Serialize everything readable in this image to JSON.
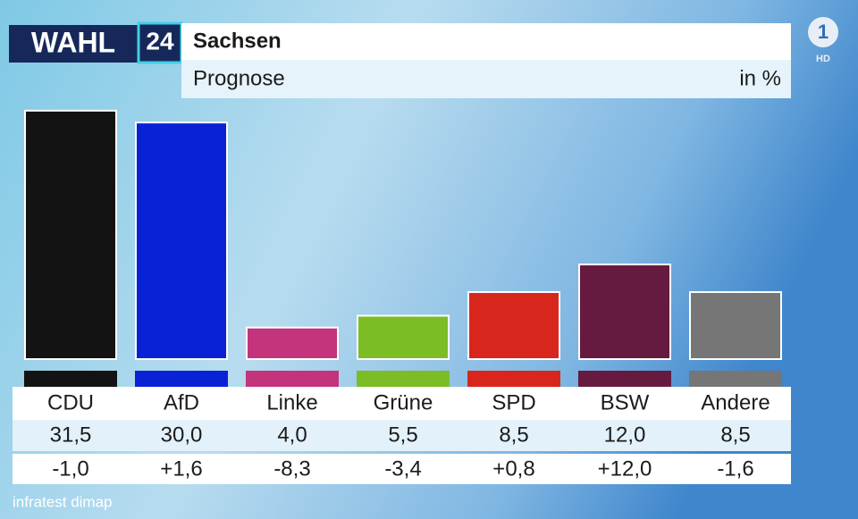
{
  "logo": {
    "word": "WAHL",
    "number": "24"
  },
  "channel": {
    "logo": "1",
    "label": "HD"
  },
  "source": "infratest dimap",
  "chart_data": {
    "type": "bar",
    "title": "Sachsen",
    "subtitle": "Prognose",
    "unit": "in %",
    "categories": [
      "CDU",
      "AfD",
      "Linke",
      "Grüne",
      "SPD",
      "BSW",
      "Andere"
    ],
    "values": [
      31.5,
      30.0,
      4.0,
      5.5,
      8.5,
      12.0,
      8.5
    ],
    "value_labels": [
      "31,5",
      "30,0",
      "4,0",
      "5,5",
      "8,5",
      "12,0",
      "8,5"
    ],
    "changes": [
      "-1,0",
      "+1,6",
      "-8,3",
      "-3,4",
      "+0,8",
      "+12,0",
      "-1,6"
    ],
    "colors": [
      "#131313",
      "#0a22d6",
      "#c3347c",
      "#7cbc25",
      "#d8261c",
      "#661a40",
      "#767676"
    ],
    "ylim": [
      0,
      35
    ],
    "grid": false
  }
}
